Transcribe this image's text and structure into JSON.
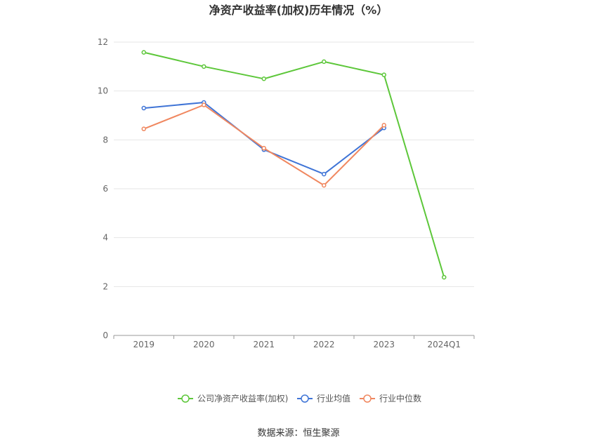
{
  "chart_data": {
    "type": "line",
    "title": "净资产收益率(加权)历年情况（%）",
    "categories": [
      "2019",
      "2020",
      "2021",
      "2022",
      "2023",
      "2024Q1"
    ],
    "ylim": [
      0,
      12
    ],
    "yticks": [
      "0",
      "2",
      "4",
      "6",
      "8",
      "10",
      "12"
    ],
    "grid": true,
    "legend_position": "bottom",
    "series": [
      {
        "name": "公司净资产收益率(加权)",
        "color": "#5dc73a",
        "values": [
          11.58,
          11.0,
          10.5,
          11.2,
          10.66,
          2.38
        ]
      },
      {
        "name": "行业均值",
        "color": "#3f74d6",
        "values": [
          9.3,
          9.53,
          7.6,
          6.6,
          8.49,
          null
        ]
      },
      {
        "name": "行业中位数",
        "color": "#f0875f",
        "values": [
          8.45,
          9.43,
          7.66,
          6.14,
          8.6,
          null
        ]
      }
    ]
  },
  "source": "数据来源：恒生聚源"
}
